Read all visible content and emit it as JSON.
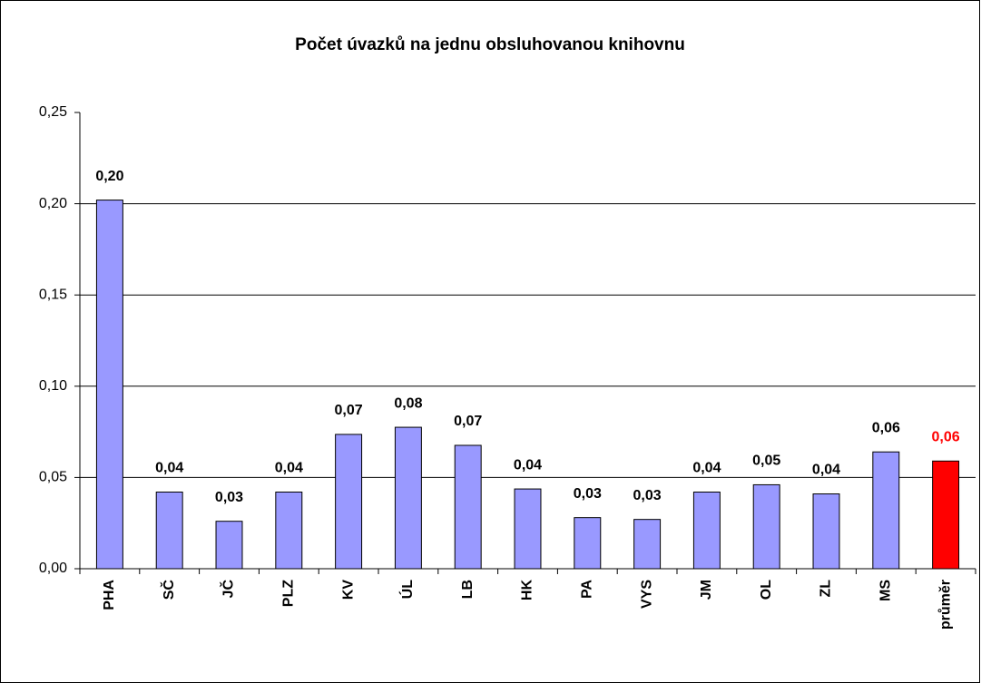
{
  "chart_data": {
    "type": "bar",
    "title": "Počet úvazků na jednu obsluhovanou knihovnu",
    "categories": [
      "PHA",
      "SČ",
      "JČ",
      "PLZ",
      "KV",
      "ÚL",
      "LB",
      "HK",
      "PA",
      "VYS",
      "JM",
      "OL",
      "ZL",
      "MS",
      "průměr"
    ],
    "values": [
      0.202,
      0.042,
      0.026,
      0.042,
      0.0736,
      0.0775,
      0.0676,
      0.0437,
      0.028,
      0.027,
      0.042,
      0.046,
      0.041,
      0.064,
      0.059
    ],
    "value_labels": [
      "0,20",
      "0,04",
      "0,03",
      "0,04",
      "0,07",
      "0,08",
      "0,07",
      "0,04",
      "0,03",
      "0,03",
      "0,04",
      "0,05",
      "0,04",
      "0,06",
      "0,06"
    ],
    "colors": [
      "#9999ff",
      "#9999ff",
      "#9999ff",
      "#9999ff",
      "#9999ff",
      "#9999ff",
      "#9999ff",
      "#9999ff",
      "#9999ff",
      "#9999ff",
      "#9999ff",
      "#9999ff",
      "#9999ff",
      "#9999ff",
      "#ff0000"
    ],
    "ylim": [
      0,
      0.25
    ],
    "yticks": [
      {
        "value": 0,
        "label": "0,00"
      },
      {
        "value": 0.05,
        "label": "0,05"
      },
      {
        "value": 0.1,
        "label": "0,10"
      },
      {
        "value": 0.15,
        "label": "0,15"
      },
      {
        "value": 0.2,
        "label": "0,20"
      },
      {
        "value": 0.25,
        "label": "0,25"
      }
    ],
    "grid": true
  }
}
